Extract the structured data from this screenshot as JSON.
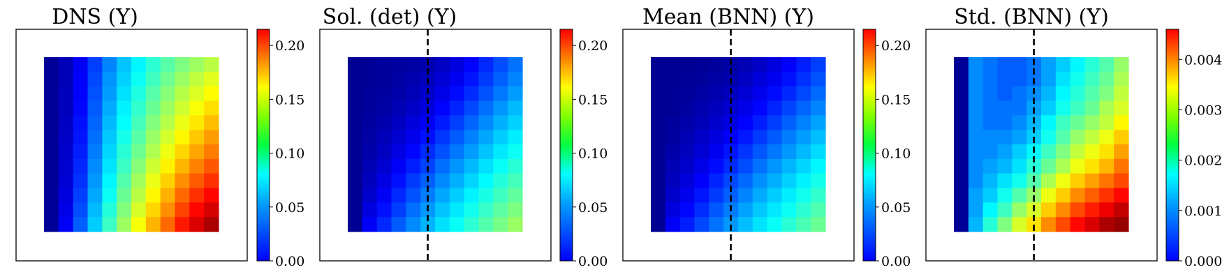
{
  "chart_data": [
    {
      "type": "heatmap",
      "title": "DNS (Y)",
      "colormap": "jet",
      "rows": 12,
      "cols": 12,
      "clim": [
        0,
        0.215
      ],
      "cbar_ticks": [
        "0.00",
        "0.05",
        "0.10",
        "0.15",
        "0.20"
      ],
      "cbar_tick_values": [
        0,
        0.05,
        0.1,
        0.15,
        0.2
      ],
      "divider": false,
      "grid": false,
      "values": [
        [
          0.005,
          0.012,
          0.025,
          0.04,
          0.055,
          0.068,
          0.079,
          0.09,
          0.099,
          0.107,
          0.114,
          0.12
        ],
        [
          0.005,
          0.012,
          0.026,
          0.042,
          0.058,
          0.071,
          0.083,
          0.094,
          0.104,
          0.113,
          0.121,
          0.128
        ],
        [
          0.005,
          0.013,
          0.027,
          0.044,
          0.06,
          0.074,
          0.087,
          0.099,
          0.109,
          0.119,
          0.127,
          0.135
        ],
        [
          0.005,
          0.013,
          0.028,
          0.046,
          0.063,
          0.078,
          0.091,
          0.103,
          0.114,
          0.124,
          0.133,
          0.141
        ],
        [
          0.005,
          0.014,
          0.03,
          0.048,
          0.066,
          0.081,
          0.095,
          0.108,
          0.119,
          0.13,
          0.139,
          0.148
        ],
        [
          0.005,
          0.015,
          0.031,
          0.05,
          0.069,
          0.085,
          0.099,
          0.113,
          0.125,
          0.136,
          0.146,
          0.155
        ],
        [
          0.005,
          0.016,
          0.033,
          0.053,
          0.072,
          0.089,
          0.104,
          0.118,
          0.131,
          0.143,
          0.153,
          0.162
        ],
        [
          0.005,
          0.017,
          0.035,
          0.056,
          0.075,
          0.093,
          0.109,
          0.124,
          0.137,
          0.15,
          0.161,
          0.17
        ],
        [
          0.005,
          0.018,
          0.037,
          0.059,
          0.079,
          0.098,
          0.115,
          0.13,
          0.144,
          0.158,
          0.169,
          0.178
        ],
        [
          0.005,
          0.02,
          0.04,
          0.062,
          0.083,
          0.103,
          0.12,
          0.136,
          0.151,
          0.166,
          0.178,
          0.187
        ],
        [
          0.005,
          0.022,
          0.043,
          0.066,
          0.088,
          0.108,
          0.126,
          0.143,
          0.158,
          0.174,
          0.187,
          0.197
        ],
        [
          0.005,
          0.025,
          0.047,
          0.07,
          0.093,
          0.114,
          0.133,
          0.15,
          0.166,
          0.183,
          0.196,
          0.206
        ]
      ]
    },
    {
      "type": "heatmap",
      "title": "Sol. (det) (Y)",
      "colormap": "jet",
      "rows": 12,
      "cols": 12,
      "clim": [
        0,
        0.215
      ],
      "cbar_ticks": [
        "0.00",
        "0.05",
        "0.10",
        "0.15",
        "0.20"
      ],
      "cbar_tick_values": [
        0,
        0.05,
        0.1,
        0.15,
        0.2
      ],
      "divider": true,
      "divider_position": "after column 5.5",
      "grid": false,
      "values": [
        [
          0.004,
          0.005,
          0.006,
          0.007,
          0.008,
          0.01,
          0.014,
          0.02,
          0.027,
          0.035,
          0.043,
          0.051
        ],
        [
          0.004,
          0.005,
          0.006,
          0.008,
          0.01,
          0.013,
          0.018,
          0.024,
          0.031,
          0.039,
          0.047,
          0.055
        ],
        [
          0.004,
          0.006,
          0.007,
          0.009,
          0.012,
          0.016,
          0.022,
          0.029,
          0.036,
          0.044,
          0.052,
          0.06
        ],
        [
          0.004,
          0.006,
          0.008,
          0.011,
          0.015,
          0.02,
          0.027,
          0.034,
          0.042,
          0.05,
          0.058,
          0.066
        ],
        [
          0.004,
          0.007,
          0.01,
          0.014,
          0.019,
          0.025,
          0.032,
          0.04,
          0.048,
          0.056,
          0.064,
          0.071
        ],
        [
          0.004,
          0.008,
          0.012,
          0.017,
          0.023,
          0.03,
          0.038,
          0.046,
          0.054,
          0.062,
          0.07,
          0.077
        ],
        [
          0.004,
          0.009,
          0.014,
          0.021,
          0.028,
          0.036,
          0.044,
          0.052,
          0.06,
          0.068,
          0.076,
          0.083
        ],
        [
          0.004,
          0.011,
          0.017,
          0.025,
          0.033,
          0.041,
          0.05,
          0.058,
          0.066,
          0.074,
          0.082,
          0.089
        ],
        [
          0.004,
          0.013,
          0.021,
          0.03,
          0.039,
          0.047,
          0.056,
          0.064,
          0.072,
          0.08,
          0.088,
          0.095
        ],
        [
          0.004,
          0.016,
          0.025,
          0.035,
          0.044,
          0.053,
          0.062,
          0.07,
          0.078,
          0.086,
          0.094,
          0.101
        ],
        [
          0.004,
          0.02,
          0.03,
          0.04,
          0.05,
          0.059,
          0.068,
          0.076,
          0.084,
          0.092,
          0.1,
          0.107
        ],
        [
          0.004,
          0.025,
          0.035,
          0.046,
          0.056,
          0.065,
          0.074,
          0.082,
          0.09,
          0.098,
          0.106,
          0.113
        ]
      ]
    },
    {
      "type": "heatmap",
      "title": "Mean (BNN) (Y)",
      "colormap": "jet",
      "rows": 12,
      "cols": 12,
      "clim": [
        0,
        0.215
      ],
      "cbar_ticks": [
        "0.00",
        "0.05",
        "0.10",
        "0.15",
        "0.20"
      ],
      "cbar_tick_values": [
        0,
        0.05,
        0.1,
        0.15,
        0.2
      ],
      "divider": true,
      "divider_position": "after column 5.5",
      "grid": false,
      "values": [
        [
          0.004,
          0.004,
          0.004,
          0.005,
          0.006,
          0.008,
          0.011,
          0.015,
          0.02,
          0.026,
          0.033,
          0.04
        ],
        [
          0.004,
          0.004,
          0.005,
          0.006,
          0.008,
          0.01,
          0.014,
          0.019,
          0.024,
          0.03,
          0.037,
          0.044
        ],
        [
          0.004,
          0.005,
          0.006,
          0.008,
          0.01,
          0.013,
          0.018,
          0.023,
          0.029,
          0.035,
          0.042,
          0.049
        ],
        [
          0.004,
          0.005,
          0.007,
          0.01,
          0.013,
          0.017,
          0.022,
          0.028,
          0.034,
          0.041,
          0.048,
          0.055
        ],
        [
          0.004,
          0.006,
          0.009,
          0.012,
          0.016,
          0.021,
          0.027,
          0.033,
          0.04,
          0.047,
          0.054,
          0.061
        ],
        [
          0.004,
          0.007,
          0.011,
          0.015,
          0.02,
          0.026,
          0.032,
          0.039,
          0.046,
          0.053,
          0.06,
          0.067
        ],
        [
          0.004,
          0.009,
          0.013,
          0.018,
          0.024,
          0.031,
          0.038,
          0.045,
          0.052,
          0.059,
          0.066,
          0.073
        ],
        [
          0.004,
          0.011,
          0.016,
          0.022,
          0.029,
          0.036,
          0.043,
          0.051,
          0.058,
          0.065,
          0.072,
          0.079
        ],
        [
          0.004,
          0.013,
          0.019,
          0.026,
          0.034,
          0.042,
          0.049,
          0.057,
          0.064,
          0.071,
          0.078,
          0.085
        ],
        [
          0.004,
          0.016,
          0.023,
          0.031,
          0.039,
          0.047,
          0.055,
          0.063,
          0.07,
          0.077,
          0.084,
          0.091
        ],
        [
          0.004,
          0.02,
          0.028,
          0.036,
          0.045,
          0.053,
          0.061,
          0.069,
          0.076,
          0.083,
          0.09,
          0.097
        ],
        [
          0.004,
          0.025,
          0.033,
          0.042,
          0.051,
          0.059,
          0.067,
          0.075,
          0.082,
          0.089,
          0.096,
          0.103
        ]
      ]
    },
    {
      "type": "heatmap",
      "title": "Std. (BNN) (Y)",
      "colormap": "jet",
      "rows": 12,
      "cols": 12,
      "clim": [
        0,
        0.0046
      ],
      "cbar_ticks": [
        "0.000",
        "0.001",
        "0.002",
        "0.003",
        "0.004"
      ],
      "cbar_tick_values": [
        0,
        0.001,
        0.002,
        0.003,
        0.004
      ],
      "divider": true,
      "divider_position": "after column 5.5",
      "grid": false,
      "values": [
        [
          0.0001,
          0.0012,
          0.0011,
          0.001,
          0.001,
          0.0011,
          0.0013,
          0.0015,
          0.0017,
          0.0019,
          0.0021,
          0.0024
        ],
        [
          0.0001,
          0.0012,
          0.0011,
          0.001,
          0.001,
          0.0011,
          0.0013,
          0.0016,
          0.0018,
          0.002,
          0.0022,
          0.0025
        ],
        [
          0.0001,
          0.0012,
          0.0011,
          0.001,
          0.0011,
          0.0012,
          0.0014,
          0.0017,
          0.0019,
          0.0021,
          0.0023,
          0.0026
        ],
        [
          0.0001,
          0.0012,
          0.0011,
          0.0011,
          0.0011,
          0.0013,
          0.0015,
          0.0018,
          0.002,
          0.0022,
          0.0025,
          0.0027
        ],
        [
          0.0001,
          0.0012,
          0.0011,
          0.0011,
          0.0012,
          0.0014,
          0.0017,
          0.002,
          0.0022,
          0.0024,
          0.0026,
          0.0029
        ],
        [
          0.0001,
          0.0012,
          0.0012,
          0.0012,
          0.0013,
          0.0015,
          0.0018,
          0.0021,
          0.0024,
          0.0026,
          0.0028,
          0.0031
        ],
        [
          0.0001,
          0.0012,
          0.0012,
          0.0013,
          0.0015,
          0.0017,
          0.002,
          0.0023,
          0.0026,
          0.0028,
          0.003,
          0.0033
        ],
        [
          0.0001,
          0.0012,
          0.0013,
          0.0014,
          0.0016,
          0.0019,
          0.0022,
          0.0025,
          0.0028,
          0.003,
          0.0032,
          0.0035
        ],
        [
          0.0001,
          0.0012,
          0.0014,
          0.0016,
          0.0018,
          0.0021,
          0.0025,
          0.0028,
          0.0031,
          0.0033,
          0.0035,
          0.0037
        ],
        [
          0.0001,
          0.0013,
          0.0015,
          0.0018,
          0.0021,
          0.0024,
          0.0028,
          0.0031,
          0.0034,
          0.0036,
          0.0038,
          0.004
        ],
        [
          0.0001,
          0.0013,
          0.0017,
          0.002,
          0.0024,
          0.0027,
          0.0031,
          0.0034,
          0.0037,
          0.0039,
          0.0041,
          0.0043
        ],
        [
          0.0001,
          0.0014,
          0.0019,
          0.0023,
          0.0027,
          0.003,
          0.0034,
          0.0037,
          0.004,
          0.0042,
          0.0044,
          0.0045
        ]
      ]
    }
  ]
}
